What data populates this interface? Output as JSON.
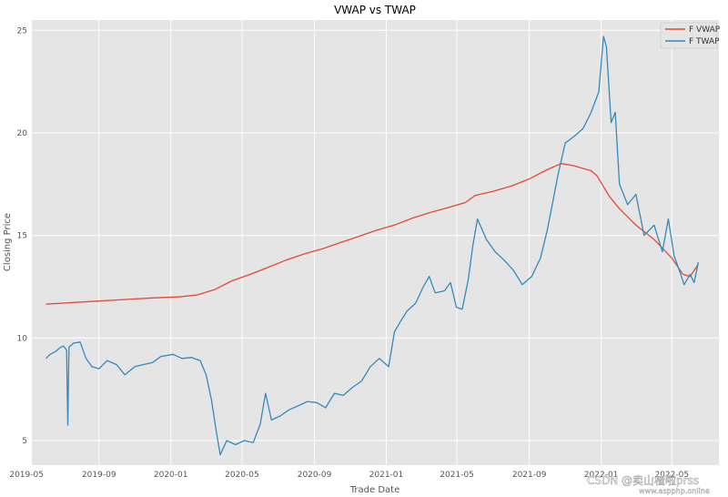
{
  "chart_data": {
    "type": "line",
    "title": "VWAP vs TWAP",
    "xlabel": "Trade Date",
    "ylabel": "Closing Price",
    "xlim": [
      "2019-05-10",
      "2022-07-20"
    ],
    "ylim": [
      3.8,
      25.5
    ],
    "grid": true,
    "legend_position": "top-right",
    "x_ticks": [
      {
        "date": "2019-05-01",
        "label": "2019-05"
      },
      {
        "date": "2019-09-01",
        "label": "2019-09"
      },
      {
        "date": "2020-01-01",
        "label": "2020-01"
      },
      {
        "date": "2020-05-01",
        "label": "2020-05"
      },
      {
        "date": "2020-09-01",
        "label": "2020-09"
      },
      {
        "date": "2021-01-01",
        "label": "2021-01"
      },
      {
        "date": "2021-05-01",
        "label": "2021-05"
      },
      {
        "date": "2021-09-01",
        "label": "2021-09"
      },
      {
        "date": "2022-01-01",
        "label": "2022-01"
      },
      {
        "date": "2022-05-01",
        "label": "2022-05"
      }
    ],
    "y_ticks": [
      {
        "value": 5,
        "label": "5"
      },
      {
        "value": 10,
        "label": "10"
      },
      {
        "value": 15,
        "label": "15"
      },
      {
        "value": 20,
        "label": "20"
      },
      {
        "value": 25,
        "label": "25"
      }
    ],
    "series": [
      {
        "name": "F VWAP",
        "color": "#e24a33",
        "points": [
          [
            "2019-06-03",
            11.65
          ],
          [
            "2019-09-01",
            11.8
          ],
          [
            "2019-12-01",
            11.95
          ],
          [
            "2020-01-15",
            12.0
          ],
          [
            "2020-02-15",
            12.1
          ],
          [
            "2020-03-15",
            12.35
          ],
          [
            "2020-04-15",
            12.8
          ],
          [
            "2020-05-15",
            13.1
          ],
          [
            "2020-06-15",
            13.45
          ],
          [
            "2020-07-15",
            13.8
          ],
          [
            "2020-08-15",
            14.1
          ],
          [
            "2020-09-15",
            14.35
          ],
          [
            "2020-10-15",
            14.65
          ],
          [
            "2020-11-15",
            14.95
          ],
          [
            "2020-12-15",
            15.25
          ],
          [
            "2021-01-15",
            15.5
          ],
          [
            "2021-02-15",
            15.85
          ],
          [
            "2021-03-15",
            16.1
          ],
          [
            "2021-04-15",
            16.35
          ],
          [
            "2021-05-15",
            16.6
          ],
          [
            "2021-06-01",
            16.95
          ],
          [
            "2021-07-01",
            17.15
          ],
          [
            "2021-08-01",
            17.4
          ],
          [
            "2021-09-01",
            17.75
          ],
          [
            "2021-10-01",
            18.2
          ],
          [
            "2021-10-25",
            18.5
          ],
          [
            "2021-11-15",
            18.4
          ],
          [
            "2021-12-15",
            18.15
          ],
          [
            "2021-12-25",
            17.9
          ],
          [
            "2022-01-15",
            16.9
          ],
          [
            "2022-02-01",
            16.3
          ],
          [
            "2022-03-01",
            15.5
          ],
          [
            "2022-04-01",
            14.8
          ],
          [
            "2022-05-01",
            13.9
          ],
          [
            "2022-05-20",
            13.1
          ],
          [
            "2022-06-01",
            13.0
          ],
          [
            "2022-06-15",
            13.6
          ]
        ]
      },
      {
        "name": "F TWAP",
        "color": "#348abd",
        "points": [
          [
            "2019-06-03",
            9.0
          ],
          [
            "2019-06-10",
            9.2
          ],
          [
            "2019-06-20",
            9.35
          ],
          [
            "2019-06-28",
            9.55
          ],
          [
            "2019-07-03",
            9.6
          ],
          [
            "2019-07-08",
            9.4
          ],
          [
            "2019-07-10",
            5.75
          ],
          [
            "2019-07-12",
            9.55
          ],
          [
            "2019-07-20",
            9.75
          ],
          [
            "2019-07-31",
            9.8
          ],
          [
            "2019-08-10",
            9.0
          ],
          [
            "2019-08-20",
            8.6
          ],
          [
            "2019-09-01",
            8.5
          ],
          [
            "2019-09-15",
            8.9
          ],
          [
            "2019-10-01",
            8.7
          ],
          [
            "2019-10-15",
            8.2
          ],
          [
            "2019-11-01",
            8.6
          ],
          [
            "2019-11-15",
            8.7
          ],
          [
            "2019-12-01",
            8.8
          ],
          [
            "2019-12-15",
            9.1
          ],
          [
            "2020-01-05",
            9.2
          ],
          [
            "2020-01-20",
            9.0
          ],
          [
            "2020-02-05",
            9.05
          ],
          [
            "2020-02-20",
            8.9
          ],
          [
            "2020-03-01",
            8.2
          ],
          [
            "2020-03-10",
            7.0
          ],
          [
            "2020-03-18",
            5.5
          ],
          [
            "2020-03-25",
            4.3
          ],
          [
            "2020-04-05",
            5.0
          ],
          [
            "2020-04-20",
            4.8
          ],
          [
            "2020-05-05",
            5.0
          ],
          [
            "2020-05-20",
            4.9
          ],
          [
            "2020-06-01",
            5.8
          ],
          [
            "2020-06-10",
            7.3
          ],
          [
            "2020-06-20",
            6.0
          ],
          [
            "2020-07-05",
            6.2
          ],
          [
            "2020-07-20",
            6.5
          ],
          [
            "2020-08-05",
            6.7
          ],
          [
            "2020-08-20",
            6.9
          ],
          [
            "2020-09-05",
            6.85
          ],
          [
            "2020-09-20",
            6.6
          ],
          [
            "2020-10-05",
            7.3
          ],
          [
            "2020-10-20",
            7.2
          ],
          [
            "2020-11-05",
            7.6
          ],
          [
            "2020-11-20",
            7.9
          ],
          [
            "2020-12-05",
            8.6
          ],
          [
            "2020-12-20",
            9.0
          ],
          [
            "2021-01-05",
            8.6
          ],
          [
            "2021-01-15",
            10.3
          ],
          [
            "2021-01-25",
            10.8
          ],
          [
            "2021-02-05",
            11.3
          ],
          [
            "2021-02-20",
            11.7
          ],
          [
            "2021-03-05",
            12.5
          ],
          [
            "2021-03-15",
            13.0
          ],
          [
            "2021-03-25",
            12.2
          ],
          [
            "2021-04-10",
            12.3
          ],
          [
            "2021-04-20",
            12.7
          ],
          [
            "2021-04-30",
            11.5
          ],
          [
            "2021-05-10",
            11.4
          ],
          [
            "2021-05-20",
            12.8
          ],
          [
            "2021-05-28",
            14.5
          ],
          [
            "2021-06-05",
            15.8
          ],
          [
            "2021-06-20",
            14.8
          ],
          [
            "2021-07-05",
            14.2
          ],
          [
            "2021-07-20",
            13.8
          ],
          [
            "2021-08-05",
            13.3
          ],
          [
            "2021-08-20",
            12.6
          ],
          [
            "2021-09-05",
            13.0
          ],
          [
            "2021-09-20",
            13.9
          ],
          [
            "2021-10-01",
            15.2
          ],
          [
            "2021-10-10",
            16.5
          ],
          [
            "2021-10-20",
            18.0
          ],
          [
            "2021-11-01",
            19.5
          ],
          [
            "2021-11-15",
            19.8
          ],
          [
            "2021-12-01",
            20.2
          ],
          [
            "2021-12-15",
            21.0
          ],
          [
            "2021-12-28",
            22.0
          ],
          [
            "2022-01-05",
            24.7
          ],
          [
            "2022-01-10",
            24.2
          ],
          [
            "2022-01-18",
            20.5
          ],
          [
            "2022-01-25",
            21.0
          ],
          [
            "2022-02-01",
            17.5
          ],
          [
            "2022-02-15",
            16.5
          ],
          [
            "2022-03-01",
            17.0
          ],
          [
            "2022-03-15",
            15.0
          ],
          [
            "2022-04-01",
            15.5
          ],
          [
            "2022-04-15",
            14.2
          ],
          [
            "2022-04-25",
            15.8
          ],
          [
            "2022-05-05",
            14.0
          ],
          [
            "2022-05-15",
            13.2
          ],
          [
            "2022-05-22",
            12.6
          ],
          [
            "2022-06-01",
            13.1
          ],
          [
            "2022-06-08",
            12.7
          ],
          [
            "2022-06-15",
            13.7
          ]
        ]
      }
    ]
  },
  "watermark": {
    "line1": "CSDN @卖山楂啦prss",
    "line2": "www.aspphp.online"
  }
}
